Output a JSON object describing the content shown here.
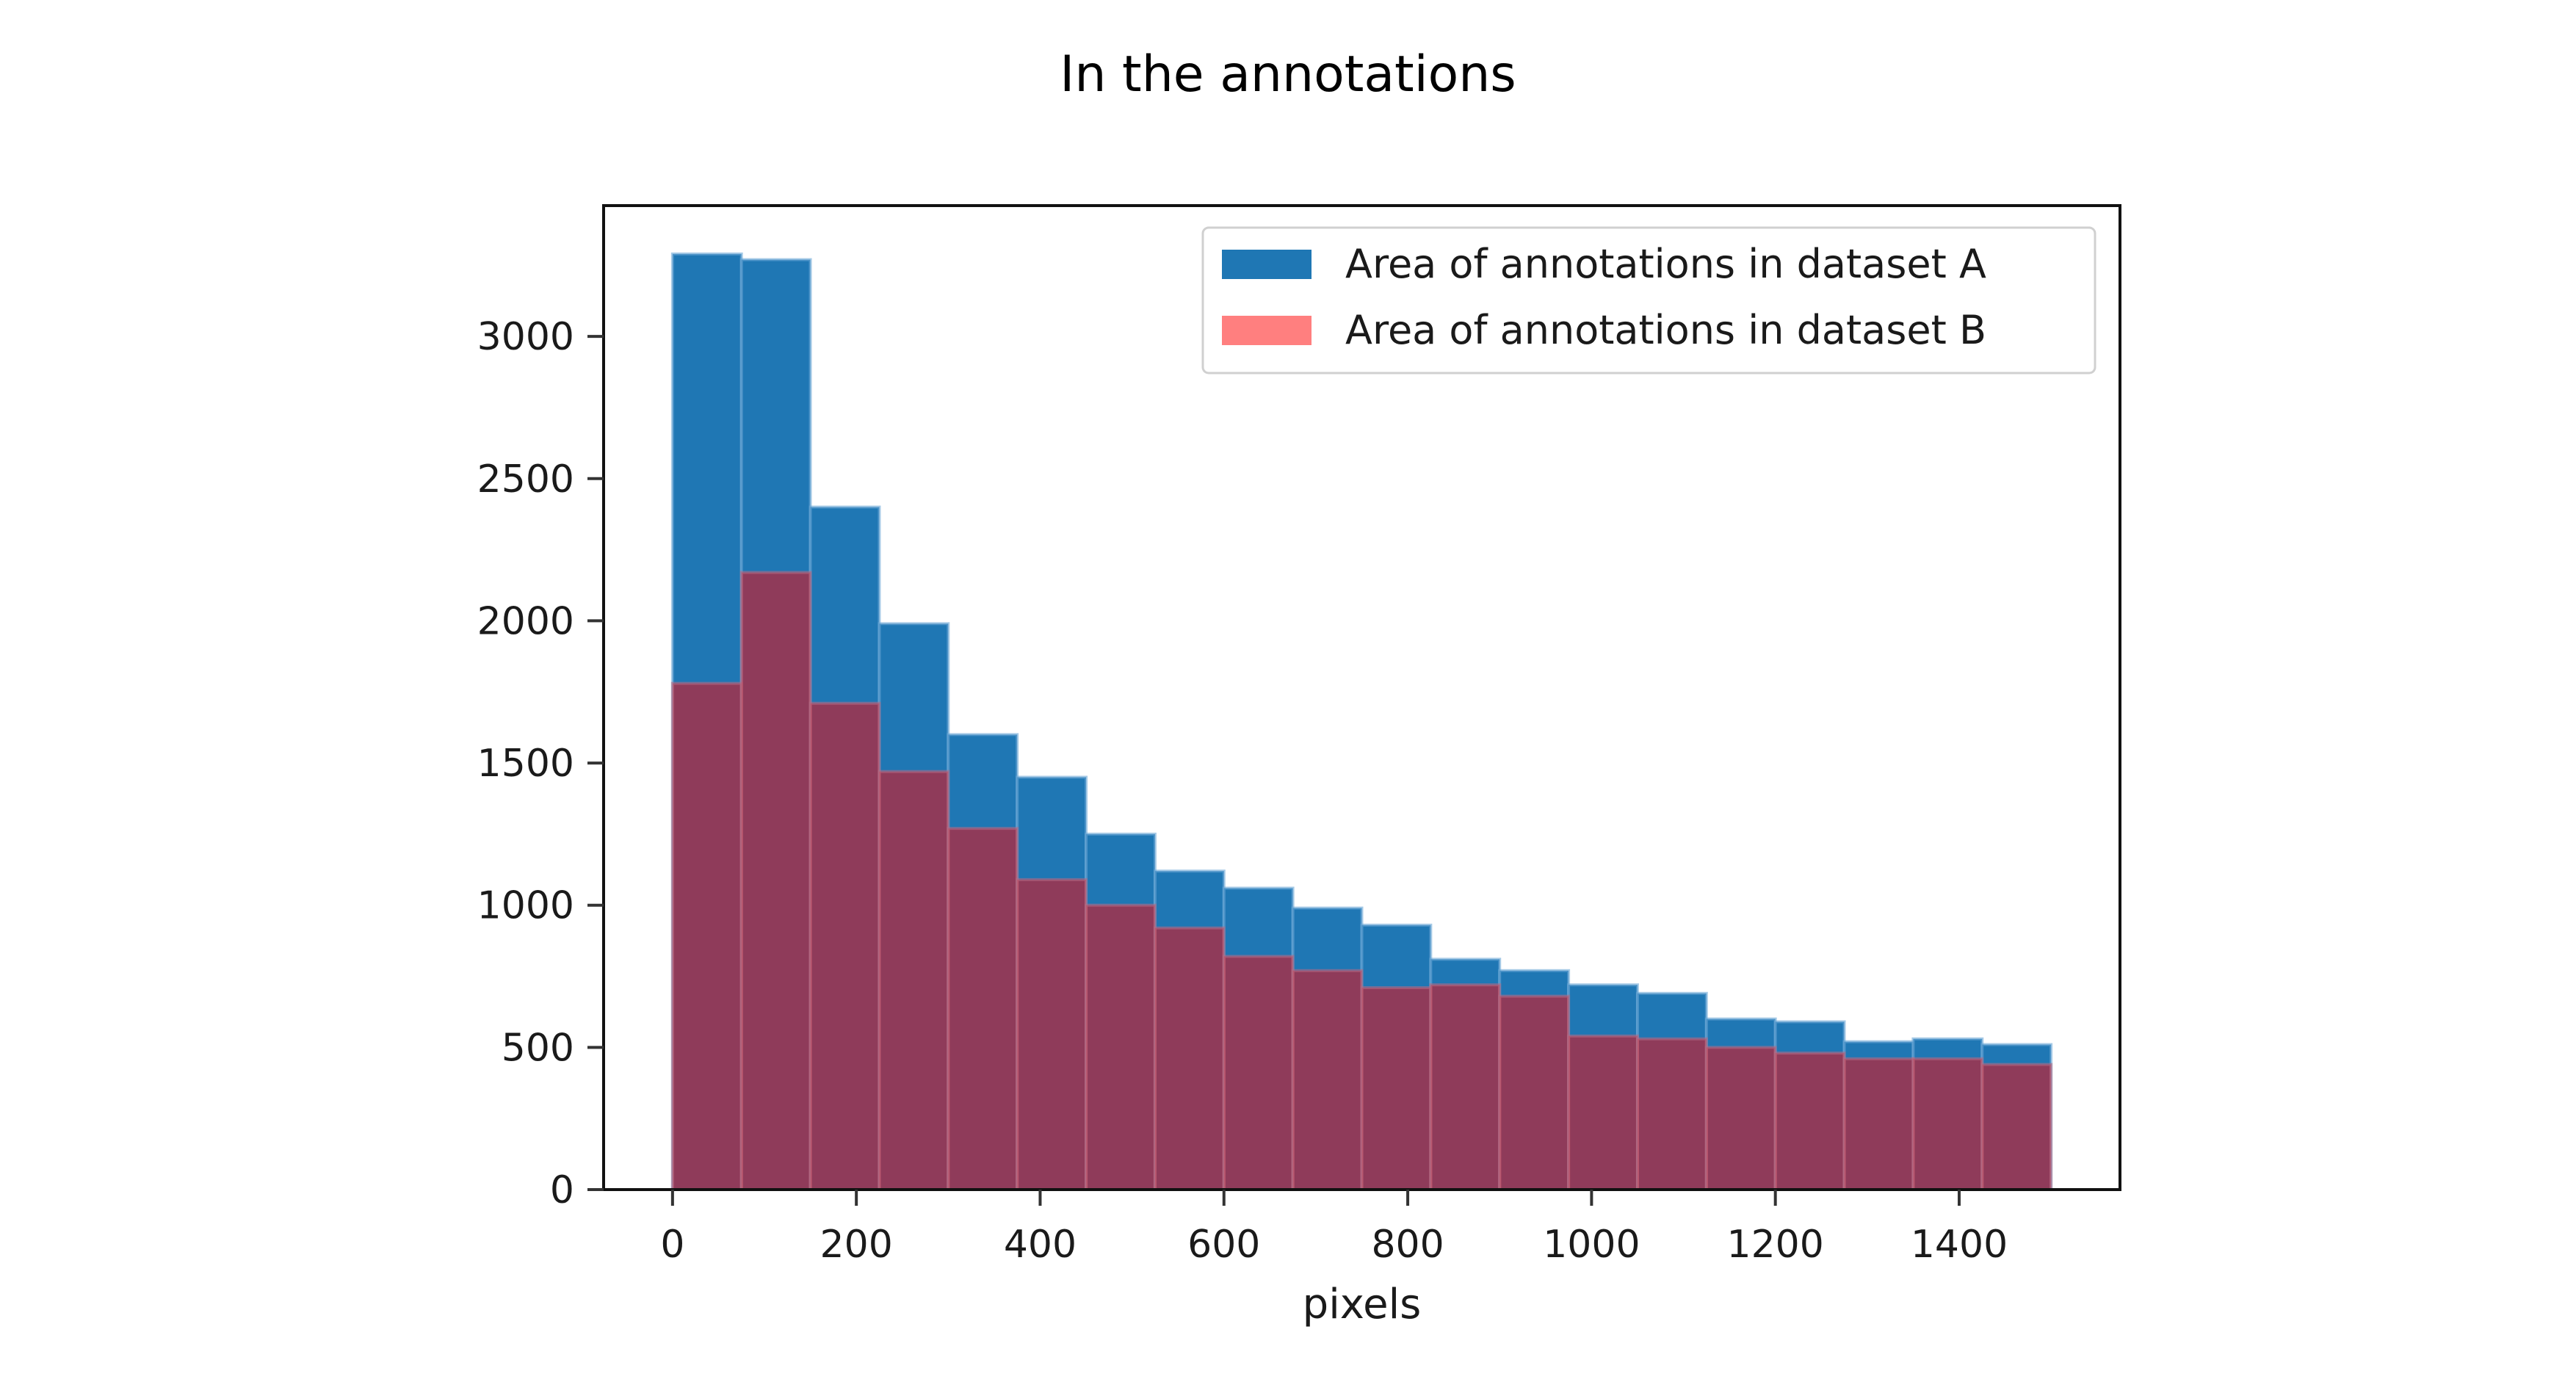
{
  "chart_data": {
    "type": "bar",
    "subtype": "overlaid-histogram",
    "title": "In the annotations",
    "xlabel": "pixels",
    "ylabel": "",
    "xlim": [
      -75,
      1575
    ],
    "ylim": [
      0,
      3460
    ],
    "grid": false,
    "bin_edges": [
      0,
      75,
      150,
      225,
      300,
      375,
      450,
      525,
      600,
      675,
      750,
      825,
      900,
      975,
      1050,
      1125,
      1200,
      1275,
      1350,
      1425,
      1500
    ],
    "x_ticks": [
      0,
      200,
      400,
      600,
      800,
      1000,
      1200,
      1400
    ],
    "x_tick_labels": [
      "0",
      "200",
      "400",
      "600",
      "800",
      "1000",
      "1200",
      "1400"
    ],
    "y_ticks": [
      0,
      500,
      1000,
      1500,
      2000,
      2500,
      3000
    ],
    "y_tick_labels": [
      "0",
      "500",
      "1000",
      "1500",
      "2000",
      "2500",
      "3000"
    ],
    "legend": {
      "placement": "top-right"
    },
    "series": [
      {
        "name": "Area of annotations in dataset A",
        "color": "#1f77b4",
        "alpha": 1.0,
        "values": [
          3290,
          3270,
          2400,
          1990,
          1600,
          1450,
          1250,
          1120,
          1060,
          990,
          930,
          810,
          770,
          720,
          690,
          600,
          590,
          520,
          530,
          510
        ]
      },
      {
        "name": "Area of annotations in dataset B",
        "color": "#ff0000",
        "alpha": 0.5,
        "values": [
          1780,
          2170,
          1710,
          1470,
          1270,
          1090,
          1000,
          920,
          820,
          770,
          710,
          720,
          680,
          540,
          530,
          500,
          480,
          460,
          460,
          440
        ]
      }
    ]
  }
}
